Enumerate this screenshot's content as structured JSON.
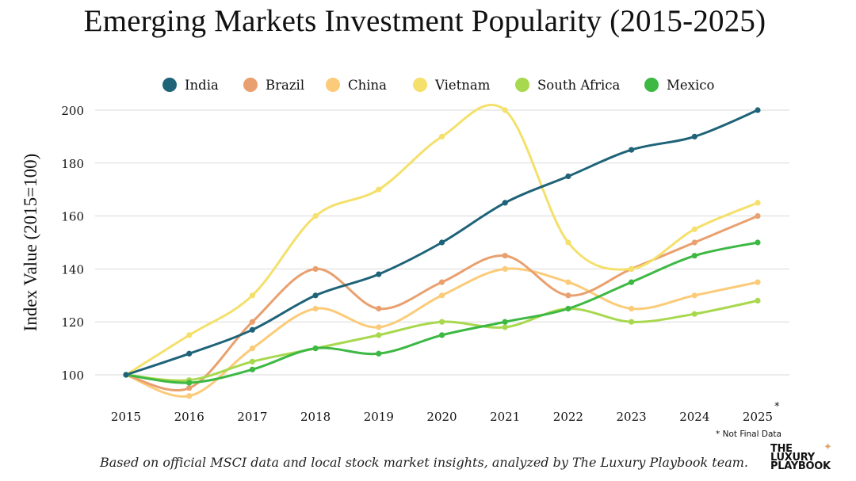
{
  "chart_data": {
    "type": "line",
    "title": "Emerging Markets Investment Popularity (2015-2025)",
    "ylabel": "Index Value (2015=100)",
    "xlabel": "",
    "x": [
      "2015",
      "2016",
      "2017",
      "2018",
      "2019",
      "2020",
      "2021",
      "2022",
      "2023",
      "2024",
      "2025"
    ],
    "yticks": [
      100,
      120,
      140,
      160,
      180,
      200
    ],
    "ylim": [
      88,
      205
    ],
    "grid": "horizontal",
    "legend_position": "top",
    "series": [
      {
        "name": "India",
        "color": "#1e6378",
        "values": [
          100,
          108,
          117,
          130,
          138,
          150,
          165,
          175,
          185,
          190,
          200
        ]
      },
      {
        "name": "Brazil",
        "color": "#e9a06e",
        "values": [
          100,
          95,
          120,
          140,
          125,
          135,
          145,
          130,
          140,
          150,
          160
        ]
      },
      {
        "name": "China",
        "color": "#fbcb79",
        "values": [
          100,
          92,
          110,
          125,
          118,
          130,
          140,
          135,
          125,
          130,
          135
        ]
      },
      {
        "name": "Vietnam",
        "color": "#f4e06b",
        "values": [
          100,
          115,
          130,
          160,
          170,
          190,
          200,
          150,
          140,
          155,
          165
        ]
      },
      {
        "name": "South Africa",
        "color": "#a8d84e",
        "values": [
          100,
          98,
          105,
          110,
          115,
          120,
          118,
          125,
          120,
          123,
          128
        ]
      },
      {
        "name": "Mexico",
        "color": "#3cb843",
        "values": [
          100,
          97,
          102,
          110,
          108,
          115,
          120,
          125,
          135,
          145,
          150
        ]
      }
    ]
  },
  "annotations": {
    "last_year_marker": "*",
    "not_final": "* Not Final Data",
    "source": "Based on official MSCI data and local stock market insights, analyzed by The Luxury Playbook team."
  },
  "logo": {
    "lines": [
      "THE",
      "LUXURY",
      "PLAYBOOK"
    ],
    "mark": "✦"
  }
}
